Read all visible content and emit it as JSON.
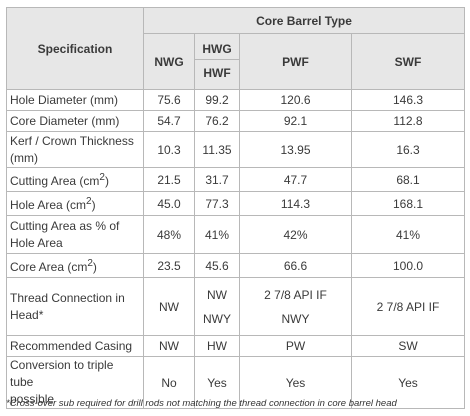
{
  "header": {
    "spec_label": "Specification",
    "group_label": "Core Barrel Type",
    "columns": [
      "NWG",
      "HWG|HWF",
      "PWF",
      "SWF"
    ],
    "col_nwg": "NWG",
    "col_hwg": "HWG",
    "col_hwf": "HWF",
    "col_pwf": "PWF",
    "col_swf": "SWF"
  },
  "rows": [
    {
      "label": "Hole Diameter (mm)",
      "values": [
        "75.6",
        "99.2",
        "120.6",
        "146.3"
      ]
    },
    {
      "label": "Core Diameter (mm)",
      "values": [
        "54.7",
        "76.2",
        "92.1",
        "112.8"
      ]
    },
    {
      "label": "Kerf / Crown Thickness (mm)",
      "values": [
        "10.3",
        "11.35",
        "13.95",
        "16.3"
      ]
    },
    {
      "label": "Cutting Area (cm2)",
      "values": [
        "21.5",
        "31.7",
        "47.7",
        "68.1"
      ]
    },
    {
      "label": "Hole Area (cm2)",
      "values": [
        "45.0",
        "77.3",
        "114.3",
        "168.1"
      ]
    },
    {
      "label": "Cutting Area as % of Hole Area",
      "values": [
        "48%",
        "41%",
        "42%",
        "41%"
      ]
    },
    {
      "label": "Core Area (cm2)",
      "values": [
        "23.5",
        "45.6",
        "66.6",
        "100.0"
      ]
    },
    {
      "label": "Thread Connection in Head*",
      "values": [
        "NW",
        "NW|NWY",
        "2 7/8 API IF|NWY",
        "2 7/8 API IF"
      ]
    },
    {
      "label": "Recommended Casing",
      "values": [
        "NW",
        "HW",
        "PW",
        "SW"
      ]
    },
    {
      "label": "Conversion to triple tube possible",
      "values": [
        "No",
        "Yes",
        "Yes",
        "Yes"
      ]
    }
  ],
  "text": {
    "r0": "Hole Diameter (mm)",
    "r1": "Core Diameter (mm)",
    "r2a": "Kerf / Crown Thickness",
    "r2b": "(mm)",
    "r3": "Cutting Area (cm",
    "r4": "Hole Area (cm",
    "r5a": "Cutting Area as % of",
    "r5b": "Hole Area",
    "r6": "Core Area (cm",
    "sup2": "2",
    "close": ")",
    "r7a": "Thread Connection in",
    "r7b": "Head*",
    "r7_hwg_a": "NW",
    "r7_hwg_b": "NWY",
    "r7_pwf_a": "2 7/8 API IF",
    "r7_pwf_b": "NWY",
    "r8": "Recommended Casing",
    "r9a": "Conversion to triple tube",
    "r9b": "possible"
  },
  "footnote": "*Cross-over sub required for drill rods not matching the thread connection in core barrel head",
  "colors": {
    "header_bg": "#e7e7e7",
    "border": "#b8b8b8",
    "text": "#3a3a3a"
  }
}
